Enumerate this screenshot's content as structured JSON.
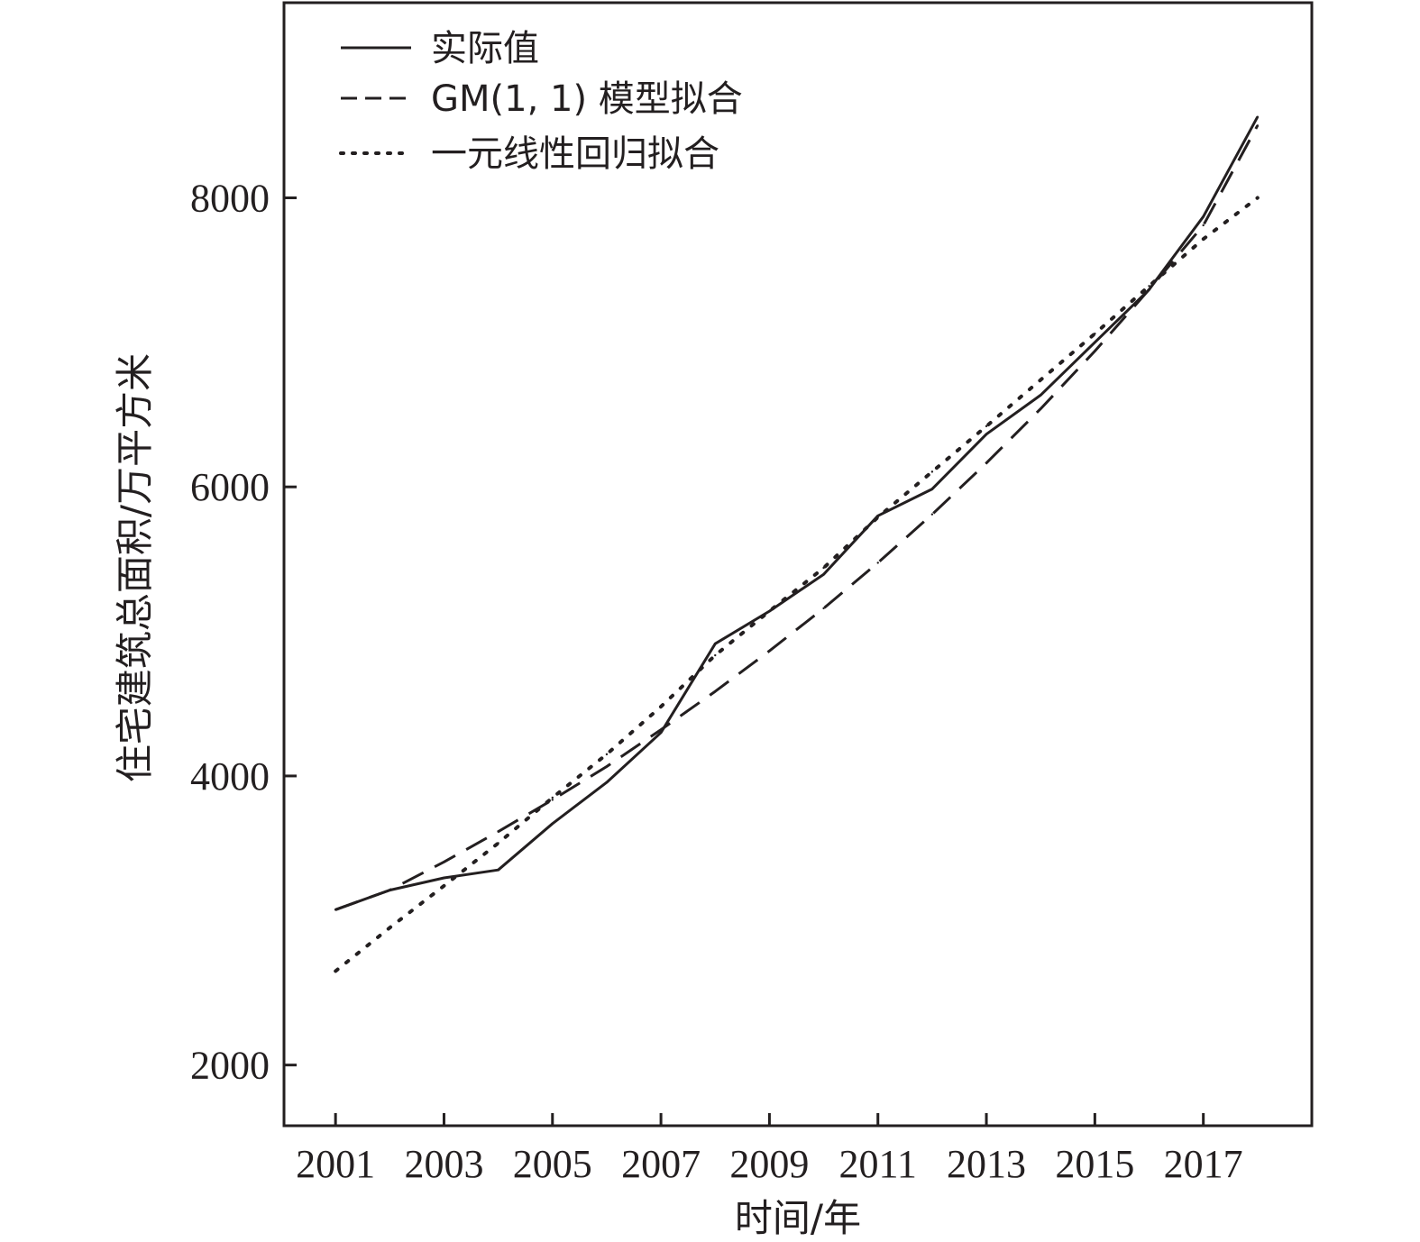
{
  "chart_data": {
    "type": "line",
    "xlabel": "时间/年",
    "ylabel": "住宅建筑总面积/万平方米",
    "xlim": [
      2000.05,
      2019.0
    ],
    "ylim": [
      1580,
      9350
    ],
    "x_ticks": [
      2001,
      2003,
      2005,
      2007,
      2009,
      2011,
      2013,
      2015,
      2017
    ],
    "x_tick_labels": [
      "2001",
      "2003",
      "2005",
      "2007",
      "2009",
      "2011",
      "2013",
      "2015",
      "2017"
    ],
    "y_ticks": [
      2000,
      4000,
      6000,
      8000
    ],
    "y_tick_labels": [
      "2000",
      "4000",
      "6000",
      "8000"
    ],
    "grid": false,
    "legend": "top-left",
    "x": [
      2001,
      2002,
      2003,
      2004,
      2005,
      2006,
      2007,
      2008,
      2009,
      2010,
      2011,
      2012,
      2013,
      2014,
      2015,
      2016,
      2017,
      2018
    ],
    "series": [
      {
        "name": "实际值",
        "style": "solid",
        "color": "#231f20",
        "values": [
          3075,
          3210,
          3295,
          3350,
          3670,
          3955,
          4300,
          4915,
          5140,
          5395,
          5800,
          5985,
          6365,
          6635,
          7000,
          7365,
          7870,
          8560
        ]
      },
      {
        "name": "GM(1, 1) 模型拟合",
        "style": "dashed",
        "color": "#231f20",
        "values": [
          3075,
          3210,
          3405,
          3615,
          3835,
          4065,
          4320,
          4585,
          4865,
          5160,
          5475,
          5810,
          6165,
          6540,
          6940,
          7365,
          7810,
          8500
        ]
      },
      {
        "name": "一元线性回归拟合",
        "style": "dotted",
        "color": "#231f20",
        "values": [
          2650,
          2950,
          3240,
          3535,
          3850,
          4150,
          4480,
          4835,
          5140,
          5440,
          5790,
          6105,
          6420,
          6740,
          7060,
          7390,
          7715,
          8000
        ]
      }
    ]
  }
}
